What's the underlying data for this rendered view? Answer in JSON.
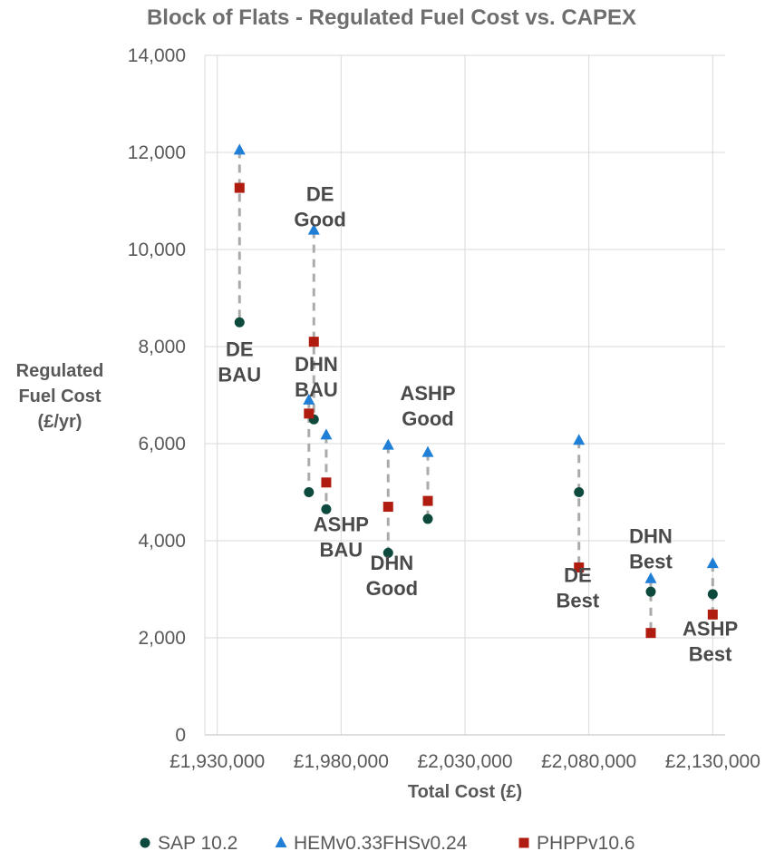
{
  "chart_data": {
    "type": "scatter",
    "title": "Block of Flats - Regulated Fuel Cost vs. CAPEX",
    "xlabel": "Total Cost (£)",
    "ylabel_lines": [
      "Regulated",
      "Fuel Cost",
      "(£/yr)"
    ],
    "xlim": [
      1925000,
      2135000
    ],
    "ylim": [
      0,
      14000
    ],
    "x_ticks": [
      1930000,
      1980000,
      2030000,
      2080000,
      2130000
    ],
    "x_tick_labels": [
      "£1,930,000",
      "£1,980,000",
      "£2,030,000",
      "£2,080,000",
      "£2,130,000"
    ],
    "y_ticks": [
      0,
      2000,
      4000,
      6000,
      8000,
      10000,
      12000,
      14000
    ],
    "y_tick_labels": [
      "0",
      "2,000",
      "4,000",
      "6,000",
      "8,000",
      "10,000",
      "12,000",
      "14,000"
    ],
    "grid": true,
    "legend_position": "bottom",
    "series": [
      {
        "name": "SAP 10.2",
        "marker": "circle",
        "color": "#0d4a3d",
        "points": [
          {
            "x": 1939000,
            "y": 8500
          },
          {
            "x": 1967000,
            "y": 5000
          },
          {
            "x": 1969000,
            "y": 6500
          },
          {
            "x": 1974000,
            "y": 4650
          },
          {
            "x": 1999000,
            "y": 3750
          },
          {
            "x": 2015000,
            "y": 4450
          },
          {
            "x": 2076000,
            "y": 5000
          },
          {
            "x": 2105000,
            "y": 2950
          },
          {
            "x": 2130000,
            "y": 2900
          }
        ]
      },
      {
        "name": "HEMv0.33FHSv0.24",
        "marker": "triangle",
        "color": "#1f7fd6",
        "points": [
          {
            "x": 1939000,
            "y": 12050
          },
          {
            "x": 1967000,
            "y": 6900
          },
          {
            "x": 1969000,
            "y": 10400
          },
          {
            "x": 1974000,
            "y": 6180
          },
          {
            "x": 1999000,
            "y": 5970
          },
          {
            "x": 2015000,
            "y": 5820
          },
          {
            "x": 2076000,
            "y": 6070
          },
          {
            "x": 2105000,
            "y": 3220
          },
          {
            "x": 2130000,
            "y": 3530
          }
        ]
      },
      {
        "name": "PHPPv10.6",
        "marker": "square",
        "color": "#b01c10",
        "points": [
          {
            "x": 1939000,
            "y": 11270
          },
          {
            "x": 1967000,
            "y": 6620
          },
          {
            "x": 1969000,
            "y": 8100
          },
          {
            "x": 1974000,
            "y": 5200
          },
          {
            "x": 1999000,
            "y": 4700
          },
          {
            "x": 2015000,
            "y": 4820
          },
          {
            "x": 2076000,
            "y": 3450
          },
          {
            "x": 2105000,
            "y": 2100
          },
          {
            "x": 2130000,
            "y": 2480
          }
        ]
      }
    ],
    "connectors": [
      {
        "x": 1939000,
        "y_min": 8500,
        "y_max": 12050
      },
      {
        "x": 1967000,
        "y_min": 5000,
        "y_max": 6900
      },
      {
        "x": 1969000,
        "y_min": 6500,
        "y_max": 10400
      },
      {
        "x": 1974000,
        "y_min": 4650,
        "y_max": 6180
      },
      {
        "x": 1999000,
        "y_min": 3750,
        "y_max": 5970
      },
      {
        "x": 2015000,
        "y_min": 4450,
        "y_max": 5820
      },
      {
        "x": 2076000,
        "y_min": 3450,
        "y_max": 6070
      },
      {
        "x": 2105000,
        "y_min": 2100,
        "y_max": 3220
      },
      {
        "x": 2130000,
        "y_min": 2480,
        "y_max": 3530
      }
    ],
    "annotations": [
      {
        "lines": [
          "DE",
          "BAU"
        ],
        "x": 1939000,
        "y": 7800
      },
      {
        "lines": [
          "DE",
          "Good"
        ],
        "x": 1971500,
        "y": 11000
      },
      {
        "lines": [
          "DHN",
          "BAU"
        ],
        "x": 1970000,
        "y": 7500
      },
      {
        "lines": [
          "ASHP",
          "BAU"
        ],
        "x": 1980000,
        "y": 4200
      },
      {
        "lines": [
          "DHN",
          "Good"
        ],
        "x": 2000500,
        "y": 3400
      },
      {
        "lines": [
          "ASHP",
          "Good"
        ],
        "x": 2015000,
        "y": 6900
      },
      {
        "lines": [
          "DE",
          "Best"
        ],
        "x": 2075500,
        "y": 3150
      },
      {
        "lines": [
          "DHN",
          "Best"
        ],
        "x": 2105000,
        "y": 3950
      },
      {
        "lines": [
          "ASHP",
          "Best"
        ],
        "x": 2129000,
        "y": 2050
      }
    ]
  }
}
